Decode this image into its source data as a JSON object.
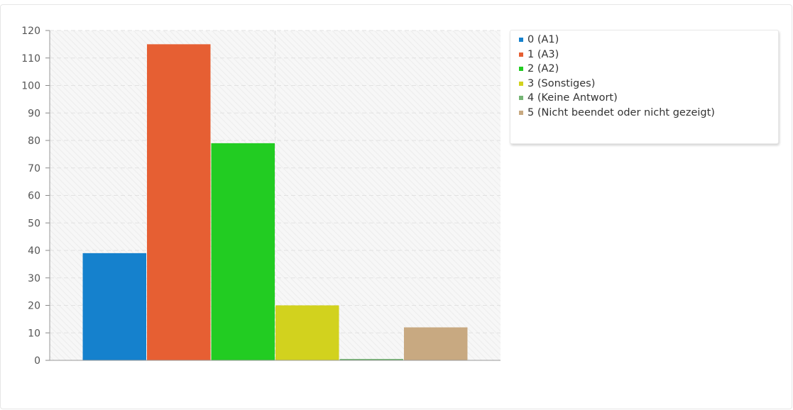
{
  "chart_data": {
    "type": "bar",
    "title": "",
    "xlabel": "",
    "ylabel": "",
    "ylim": [
      0,
      120
    ],
    "yticks": [
      0,
      10,
      20,
      30,
      40,
      50,
      60,
      70,
      80,
      90,
      100,
      110,
      120
    ],
    "grid": true,
    "legend_position": "right",
    "series": [
      {
        "name": "0 (A1)",
        "value": 39,
        "color": "#1581cd"
      },
      {
        "name": "1 (A3)",
        "value": 115,
        "color": "#e65f33"
      },
      {
        "name": "2 (A2)",
        "value": 79,
        "color": "#22cc22"
      },
      {
        "name": "3 (Sonstiges)",
        "value": 20,
        "color": "#d2d21e"
      },
      {
        "name": "4 (Keine Antwort)",
        "value": 0,
        "color": "#75b575"
      },
      {
        "name": "5 (Nicht beendet oder nicht gezeigt)",
        "value": 12,
        "color": "#c8a981"
      }
    ]
  }
}
